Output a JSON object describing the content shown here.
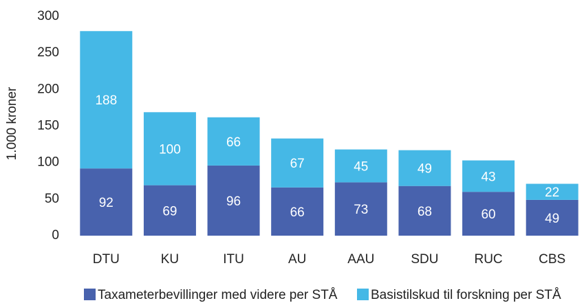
{
  "chart_data": {
    "type": "bar",
    "stacked": true,
    "y_label": "1.000 kroner",
    "categories": [
      "DTU",
      "KU",
      "ITU",
      "AU",
      "AAU",
      "SDU",
      "RUC",
      "CBS"
    ],
    "series": [
      {
        "name": "Taxameterbevillinger med videre per STÅ",
        "color": "#4862ad",
        "values": [
          92,
          69,
          96,
          66,
          73,
          68,
          60,
          49
        ]
      },
      {
        "name": "Basistilskud til forskning per STÅ",
        "color": "#45b8e6",
        "values": [
          188,
          100,
          66,
          67,
          45,
          49,
          43,
          22
        ]
      }
    ],
    "ylim": [
      0,
      300
    ],
    "yticks": [
      0,
      50,
      100,
      150,
      200,
      250,
      300
    ],
    "grid": false,
    "legend": "bottom"
  }
}
